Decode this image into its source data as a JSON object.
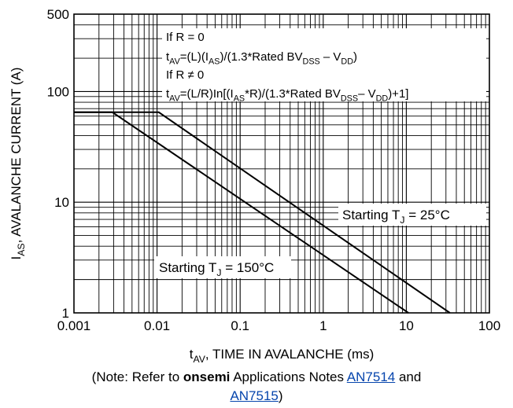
{
  "chart_data": {
    "type": "line",
    "xscale": "log",
    "yscale": "log",
    "xlim": [
      0.001,
      100
    ],
    "ylim": [
      1,
      500
    ],
    "grid": true,
    "xlabel": {
      "main": "t",
      "sub": "AV",
      "rest": ", TIME IN AVALANCHE (ms)"
    },
    "ylabel": {
      "main": "I",
      "sub": "AS",
      "rest": ", AVALANCHE CURRENT (A)"
    },
    "xticks": [
      {
        "value": 0.001,
        "label": "0.001"
      },
      {
        "value": 0.01,
        "label": "0.01"
      },
      {
        "value": 0.1,
        "label": "0.1"
      },
      {
        "value": 1,
        "label": "1"
      },
      {
        "value": 10,
        "label": "10"
      },
      {
        "value": 100,
        "label": "100"
      }
    ],
    "yticks": [
      {
        "value": 1,
        "label": "1"
      },
      {
        "value": 10,
        "label": "10"
      },
      {
        "value": 100,
        "label": "100"
      },
      {
        "value": 500,
        "label": "500"
      }
    ],
    "series": [
      {
        "x": [
          0.001,
          0.0105,
          33.5
        ],
        "y": [
          65,
          65,
          1
        ]
      },
      {
        "x": [
          0.001,
          0.0029,
          10.6
        ],
        "y": [
          65,
          65,
          1
        ]
      }
    ],
    "annotations": {
      "tj25": {
        "pre": "Starting T",
        "sub": "J",
        "post": " = 25°C"
      },
      "tj150": {
        "pre": "Starting T",
        "sub": "J",
        "post": " = 150°C"
      },
      "formula": {
        "line1": "If R = 0",
        "line2": [
          {
            "t": "t"
          },
          {
            "t": "AV",
            "s": 1
          },
          {
            "t": "=(L)(I"
          },
          {
            "t": "AS",
            "s": 1
          },
          {
            "t": ")/(1.3*Rated BV"
          },
          {
            "t": "DSS",
            "s": 1
          },
          {
            "t": " – V"
          },
          {
            "t": "DD",
            "s": 1
          },
          {
            "t": ")"
          }
        ],
        "line3": "If R ≠ 0",
        "line4": [
          {
            "t": "t"
          },
          {
            "t": "AV",
            "s": 1
          },
          {
            "t": "=(L/R)In[(I"
          },
          {
            "t": "AS",
            "s": 1
          },
          {
            "t": "*R)/(1.3*Rated BV"
          },
          {
            "t": "DSS",
            "s": 1
          },
          {
            "t": "– V"
          },
          {
            "t": "DD",
            "s": 1
          },
          {
            "t": ")+1]"
          }
        ]
      }
    }
  },
  "note": {
    "prefix": "(Note: Refer to ",
    "brand": "onsemi",
    "middle": " Applications Notes ",
    "link1": "AN7514",
    "and": " and",
    "link2": "AN7515",
    "suffix": ")"
  }
}
